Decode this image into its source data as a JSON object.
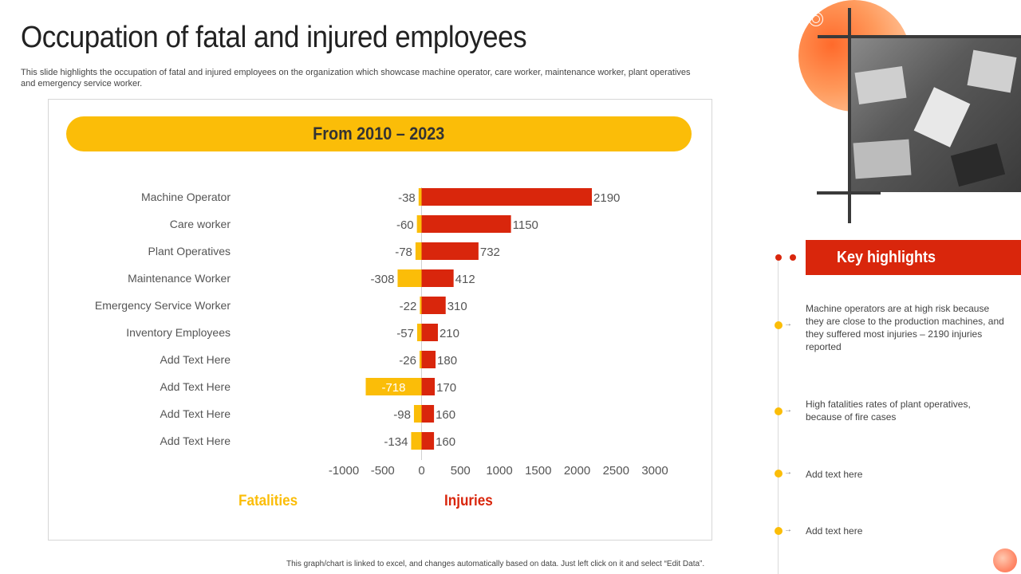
{
  "page": {
    "title": "Occupation of fatal and injured employees",
    "subtitle": "This slide highlights the occupation of fatal and injured employees on the organization which showcase machine operator, care worker, maintenance worker, plant operatives and emergency service worker.",
    "footer_note": "This graph/chart is linked to excel, and changes automatically based on data. Just left click on it and select “Edit Data”."
  },
  "colors": {
    "fatalities": "#fbbd08",
    "injuries": "#d9260c",
    "banner": "#fbbd08",
    "accent": "#d9260c"
  },
  "chart_data": {
    "type": "bar",
    "orientation": "horizontal",
    "title": "From 2010 – 2023",
    "categories": [
      "Machine Operator",
      "Care worker",
      "Plant Operatives",
      "Maintenance Worker",
      "Emergency Service Worker",
      "Inventory Employees",
      "Add Text Here",
      "Add Text Here",
      "Add Text Here",
      "Add Text Here"
    ],
    "series": [
      {
        "name": "Fatalities",
        "values": [
          -38,
          -60,
          -78,
          -308,
          -22,
          -57,
          -26,
          -718,
          -98,
          -134
        ]
      },
      {
        "name": "Injuries",
        "values": [
          2190,
          1150,
          732,
          412,
          310,
          210,
          180,
          170,
          160,
          160
        ]
      }
    ],
    "xlim": [
      -1000,
      3000
    ],
    "xticks": [
      "-1000",
      "-500",
      "0",
      "500",
      "1000",
      "1500",
      "2000",
      "2500",
      "3000"
    ],
    "legend": [
      "Fatalities",
      "Injuries"
    ],
    "legend_position": "bottom"
  },
  "key_highlights": {
    "title": "Key highlights",
    "items": [
      "Machine operators are at high risk because they are close to the production machines, and they suffered  most injuries – 2190 injuries reported",
      "High fatalities rates of plant operatives, because of fire cases",
      "Add text here",
      "Add text here"
    ]
  },
  "icons": {
    "timeline_arrow": "arrow-right-icon",
    "deco_ring": "target-ring-icon"
  }
}
